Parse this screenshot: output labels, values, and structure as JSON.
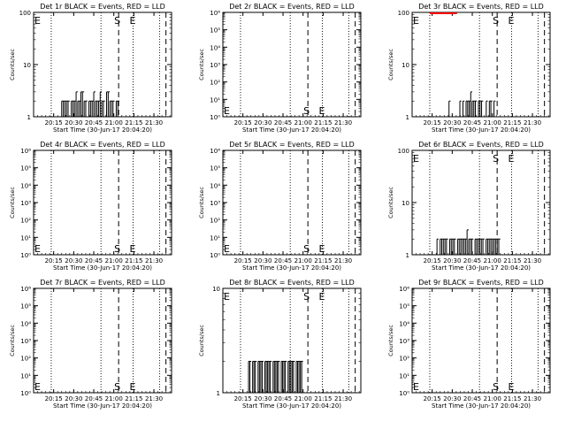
{
  "figure": {
    "background": "#ffffff",
    "foreground": "#000000",
    "lld_color": "#ff0000"
  },
  "x_tick_labels": [
    "20:15",
    "20:30",
    "20:45",
    "21:00",
    "21:15",
    "21:30"
  ],
  "x_label": "Start Time (30-Jun-17 20:04:20)",
  "y_label": "Counts/sec",
  "chart_data": [
    {
      "type": "bar",
      "title": "Det 1r BLACK = Events, RED = LLD",
      "yscale": "log",
      "ylim": [
        1,
        100
      ],
      "y_ticks": [
        "1",
        "10",
        "100"
      ],
      "markers": [
        {
          "label": "E",
          "at": "left"
        },
        {
          "label": "S",
          "at": "dashed1"
        },
        {
          "label": "E",
          "at": "dotted3"
        }
      ],
      "series": [
        {
          "color": "#000000",
          "x_range": [
            20.35,
            21.07
          ],
          "values": [
            2,
            2,
            2,
            2,
            2,
            1,
            2,
            2,
            2,
            3,
            2,
            2,
            3,
            3,
            2,
            2,
            1,
            2,
            2,
            2,
            3,
            2,
            2,
            2,
            3,
            2,
            2,
            1,
            3,
            3,
            2,
            2,
            2,
            1,
            2,
            2
          ],
          "baseline": 1
        }
      ]
    },
    {
      "type": "bar",
      "title": "Det 2r BLACK = Events, RED = LLD",
      "yscale": "log",
      "ylim": [
        1,
        1000000
      ],
      "y_ticks": [
        "10⁰",
        "10¹",
        "10²",
        "10³",
        "10⁴",
        "10⁵",
        "10⁶"
      ],
      "markers": [
        {
          "label": "E",
          "at": "left"
        },
        {
          "label": "S",
          "at": "dashed1"
        },
        {
          "label": "E",
          "at": "dotted3"
        }
      ],
      "series": []
    },
    {
      "type": "bar",
      "title": "Det 3r BLACK = Events, RED = LLD",
      "yscale": "log",
      "ylim": [
        1,
        100
      ],
      "y_ticks": [
        "1",
        "10",
        "100"
      ],
      "markers": [
        {
          "label": "E",
          "at": "left"
        },
        {
          "label": "S",
          "at": "dashed1"
        },
        {
          "label": "E",
          "at": "dotted3"
        }
      ],
      "series": [
        {
          "color": "#000000",
          "x_range": [
            20.46,
            21.04
          ],
          "values": [
            2,
            1,
            1,
            1,
            1,
            1,
            1,
            2,
            1,
            2,
            1,
            2,
            2,
            2,
            3,
            2,
            2,
            2,
            1,
            2,
            2,
            2,
            1,
            1,
            2,
            1,
            2,
            2,
            1,
            2
          ],
          "baseline": 1
        },
        {
          "color": "#ff0000",
          "x_range": [
            20.22,
            20.56
          ],
          "values": [
            100
          ],
          "baseline": 100
        }
      ]
    },
    {
      "type": "bar",
      "title": "Det 4r BLACK = Events, RED = LLD",
      "yscale": "log",
      "ylim": [
        1,
        1000000
      ],
      "y_ticks": [
        "10⁰",
        "10¹",
        "10²",
        "10³",
        "10⁴",
        "10⁵",
        "10⁶"
      ],
      "markers": [
        {
          "label": "E",
          "at": "left"
        },
        {
          "label": "S",
          "at": "dashed1"
        },
        {
          "label": "E",
          "at": "dotted3"
        }
      ],
      "series": []
    },
    {
      "type": "bar",
      "title": "Det 5r BLACK = Events, RED = LLD",
      "yscale": "log",
      "ylim": [
        1,
        1000000
      ],
      "y_ticks": [
        "10⁰",
        "10¹",
        "10²",
        "10³",
        "10⁴",
        "10⁵",
        "10⁶"
      ],
      "markers": [
        {
          "label": "E",
          "at": "left"
        },
        {
          "label": "S",
          "at": "dashed1"
        },
        {
          "label": "E",
          "at": "dotted3"
        }
      ],
      "series": []
    },
    {
      "type": "bar",
      "title": "Det 6r BLACK = Events, RED = LLD",
      "yscale": "log",
      "ylim": [
        1,
        100
      ],
      "y_ticks": [
        "1",
        "10",
        "100"
      ],
      "markers": [
        {
          "label": "E",
          "at": "left"
        },
        {
          "label": "S",
          "at": "dashed1"
        },
        {
          "label": "E",
          "at": "dotted3"
        }
      ],
      "series": [
        {
          "color": "#000000",
          "x_range": [
            20.31,
            21.1
          ],
          "values": [
            2,
            1,
            2,
            2,
            2,
            2,
            2,
            1,
            2,
            2,
            2,
            2,
            1,
            2,
            2,
            2,
            2,
            2,
            2,
            3,
            2,
            2,
            2,
            1,
            2,
            2,
            2,
            2,
            2,
            2,
            1,
            2,
            2,
            2,
            2,
            2,
            2,
            2,
            2,
            2
          ],
          "baseline": 1
        }
      ]
    },
    {
      "type": "bar",
      "title": "Det 7r BLACK = Events, RED = LLD",
      "yscale": "log",
      "ylim": [
        1,
        1000000
      ],
      "y_ticks": [
        "10⁰",
        "10¹",
        "10²",
        "10³",
        "10⁴",
        "10⁵",
        "10⁶"
      ],
      "markers": [
        {
          "label": "E",
          "at": "left"
        },
        {
          "label": "S",
          "at": "dashed1"
        },
        {
          "label": "E",
          "at": "dotted3"
        }
      ],
      "series": []
    },
    {
      "type": "bar",
      "title": "Det 8r BLACK = Events, RED = LLD",
      "yscale": "log",
      "ylim": [
        1,
        10
      ],
      "y_ticks": [
        "1",
        "10"
      ],
      "markers": [
        {
          "label": "E",
          "at": "left"
        },
        {
          "label": "S",
          "at": "dashed1"
        },
        {
          "label": "E",
          "at": "dotted3"
        }
      ],
      "series": [
        {
          "color": "#000000",
          "x_range": [
            20.32,
            21.0
          ],
          "values": [
            2,
            2,
            1,
            2,
            2,
            2,
            1,
            2,
            2,
            2,
            2,
            1,
            2,
            2,
            2,
            2,
            2,
            1,
            2,
            2,
            2,
            2,
            2,
            1,
            2,
            2,
            2,
            2,
            1,
            2,
            2,
            2,
            2,
            2,
            1,
            2,
            2,
            2,
            2,
            2
          ],
          "baseline": 1
        }
      ]
    },
    {
      "type": "bar",
      "title": "Det 9r BLACK = Events, RED = LLD",
      "yscale": "log",
      "ylim": [
        1,
        1000000
      ],
      "y_ticks": [
        "10⁰",
        "10¹",
        "10²",
        "10³",
        "10⁴",
        "10⁵",
        "10⁶"
      ],
      "markers": [
        {
          "label": "E",
          "at": "left"
        },
        {
          "label": "S",
          "at": "dashed1"
        },
        {
          "label": "E",
          "at": "dotted3"
        }
      ],
      "series": []
    }
  ],
  "x_axis": {
    "ticks_hours": [
      20.25,
      20.5,
      20.75,
      21.0,
      21.25,
      21.5
    ],
    "xlim": [
      20.0,
      21.72
    ],
    "dotted_lines": [
      20.22,
      20.84,
      21.24,
      21.57
    ],
    "dashed_lines": [
      21.06,
      21.65
    ]
  }
}
